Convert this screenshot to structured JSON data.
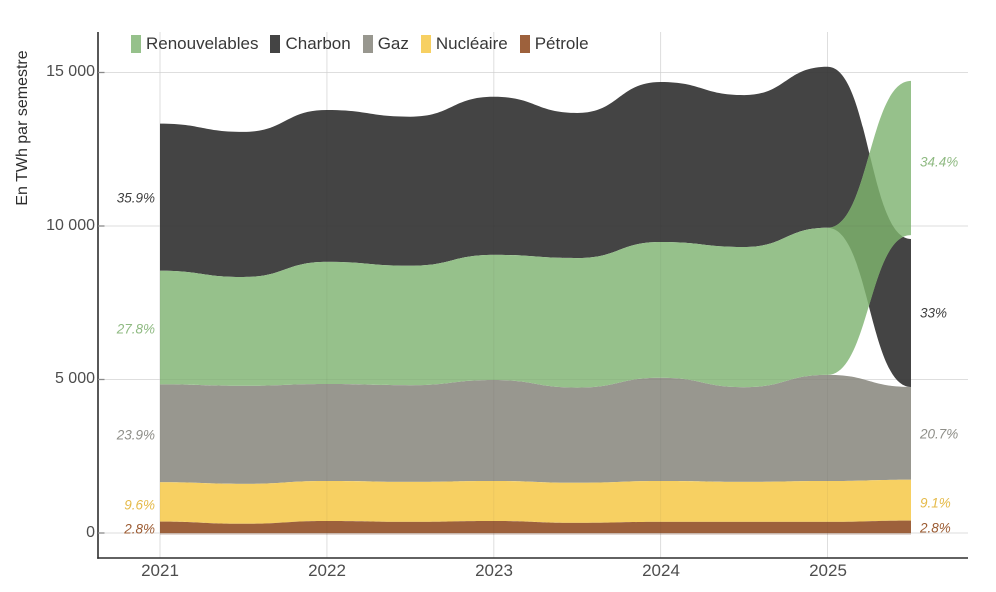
{
  "legend": {
    "items": [
      {
        "label": "Renouvelables",
        "color": "#96c18b"
      },
      {
        "label": "Charbon",
        "color": "#444444"
      },
      {
        "label": "Gaz",
        "color": "#98978f"
      },
      {
        "label": "Nucléaire",
        "color": "#f7d062"
      },
      {
        "label": "Pétrole",
        "color": "#9d613c"
      }
    ]
  },
  "y_axis": {
    "title": "En TWh par semestre",
    "ticks": [
      "15 000",
      "10 000",
      "5 000",
      "0"
    ]
  },
  "x_axis": {
    "ticks": [
      "2021",
      "2022",
      "2023",
      "2024",
      "2025"
    ]
  },
  "annotations": {
    "left": [
      {
        "text": "35.9%",
        "color": "#3f3f3f"
      },
      {
        "text": "27.8%",
        "color": "#8fba82"
      },
      {
        "text": "23.9%",
        "color": "#8e8e88"
      },
      {
        "text": "9.6%",
        "color": "#e5ba49"
      },
      {
        "text": "2.8%",
        "color": "#9c5c33"
      }
    ],
    "right": [
      {
        "text": "34.4%",
        "color": "#8fba82"
      },
      {
        "text": "33%",
        "color": "#3f3f3f"
      },
      {
        "text": "20.7%",
        "color": "#8e8e88"
      },
      {
        "text": "9.1%",
        "color": "#e5ba49"
      },
      {
        "text": "2.8%",
        "color": "#9c5c33"
      }
    ]
  },
  "chart_data": {
    "type": "area",
    "stacked": true,
    "title": "",
    "ylabel": "En TWh par semestre",
    "ylim": [
      0,
      15500
    ],
    "yticks": [
      0,
      5000,
      10000,
      15000
    ],
    "x_years": [
      2021,
      2022,
      2023,
      2024,
      2025
    ],
    "x": [
      "2021-S1",
      "2021-S2",
      "2022-S1",
      "2022-S2",
      "2023-S1",
      "2023-S2",
      "2024-S1",
      "2024-S2",
      "2025-S1",
      "2025-S2"
    ],
    "series": [
      {
        "name": "Pétrole",
        "color": "#9d613c",
        "values": [
          370,
          300,
          390,
          360,
          390,
          330,
          360,
          360,
          360,
          405
        ]
      },
      {
        "name": "Nucléaire",
        "color": "#f7d062",
        "values": [
          1280,
          1300,
          1305,
          1305,
          1305,
          1305,
          1335,
          1305,
          1335,
          1330
        ]
      },
      {
        "name": "Gaz",
        "color": "#98978f",
        "values": [
          3190,
          3195,
          3160,
          3150,
          3290,
          3100,
          3360,
          3085,
          3455,
          3020
        ]
      },
      {
        "name": "Renouvelables",
        "color": "#96c18b",
        "values": [
          3705,
          3545,
          3975,
          3890,
          4075,
          4220,
          4425,
          4565,
          4790,
          5020
        ]
      },
      {
        "name": "Charbon",
        "color": "#444444",
        "values": [
          4790,
          4725,
          4950,
          4855,
          5150,
          4725,
          5210,
          4950,
          5250,
          4820
        ]
      }
    ],
    "stack_order_note": "Charbon est empilé au-dessus de Renouvelables jusqu'à 2025-S1 ; les deux rubans se croisent sur le dernier semestre (2025-S2) où Renouvelables passe au sommet.",
    "overlap_color": "#74a066",
    "grid": true,
    "legend_position": "top"
  }
}
